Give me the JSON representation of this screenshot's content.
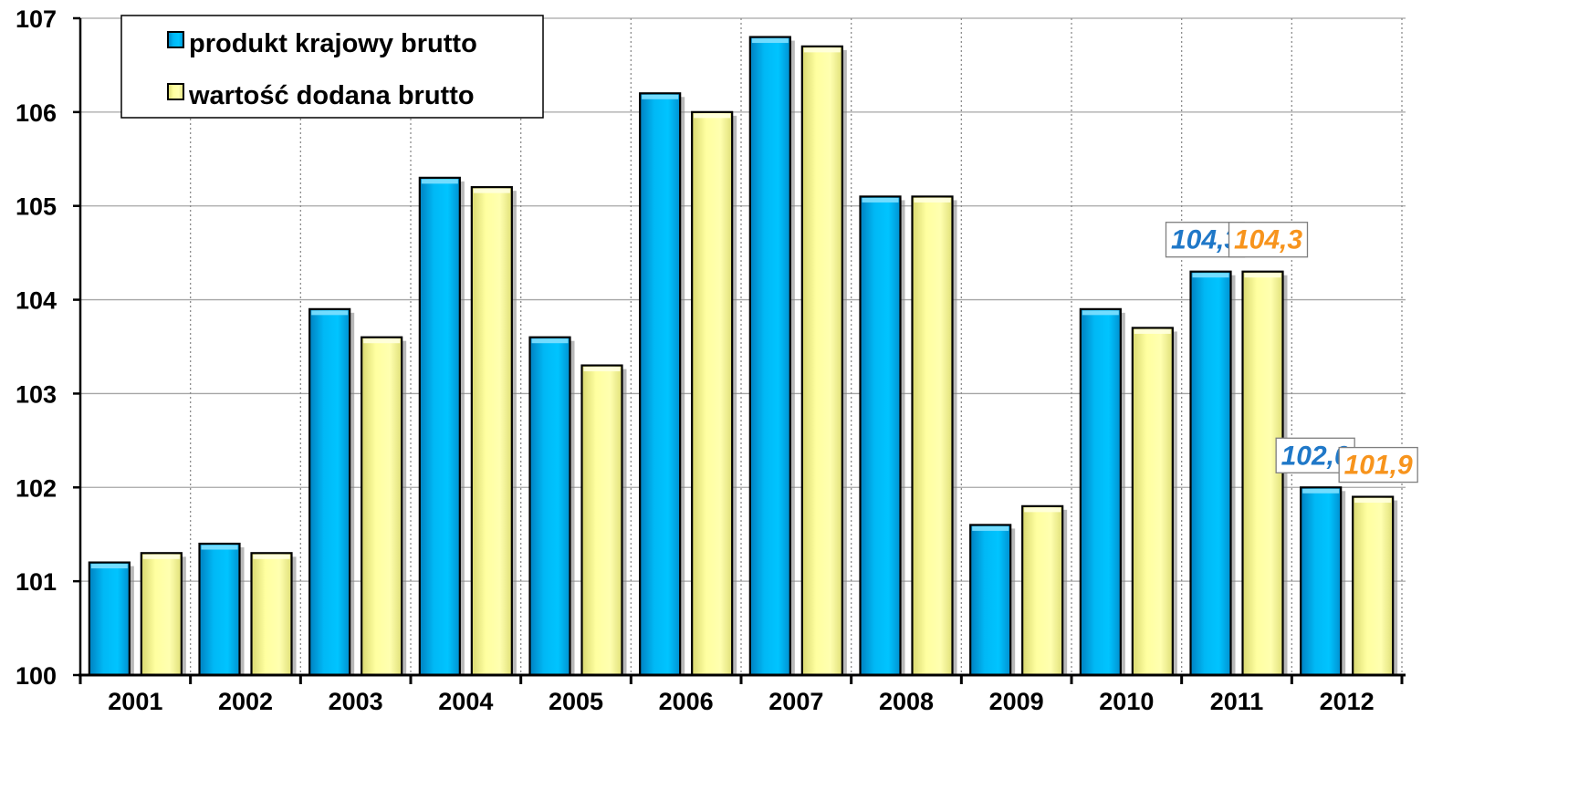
{
  "chart_data": {
    "type": "bar",
    "categories": [
      "2001",
      "2002",
      "2003",
      "2004",
      "2005",
      "2006",
      "2007",
      "2008",
      "2009",
      "2010",
      "2011",
      "2012"
    ],
    "series": [
      {
        "name": "produkt krajowy brutto",
        "values": [
          101.2,
          101.4,
          103.9,
          105.3,
          103.6,
          106.2,
          106.8,
          105.1,
          101.6,
          103.9,
          104.3,
          102.0
        ],
        "color": "#00b0f0"
      },
      {
        "name": "wartość dodana brutto",
        "values": [
          101.3,
          101.3,
          103.6,
          105.2,
          103.3,
          106.0,
          106.7,
          105.1,
          101.8,
          103.7,
          104.3,
          101.9
        ],
        "color": "#ffff99"
      }
    ],
    "ylim": [
      100,
      107
    ],
    "yticks": [
      "100",
      "101",
      "102",
      "103",
      "104",
      "105",
      "106",
      "107"
    ],
    "grid": true,
    "legend_position": "top-left",
    "data_labels": [
      {
        "category_index": 10,
        "series_index": 0,
        "text": "104,3",
        "color": "#1f78c8"
      },
      {
        "category_index": 10,
        "series_index": 1,
        "text": "104,3",
        "color": "#f7941d"
      },
      {
        "category_index": 11,
        "series_index": 0,
        "text": "102,0",
        "color": "#1f78c8"
      },
      {
        "category_index": 11,
        "series_index": 1,
        "text": "101,9",
        "color": "#f7941d"
      }
    ]
  }
}
